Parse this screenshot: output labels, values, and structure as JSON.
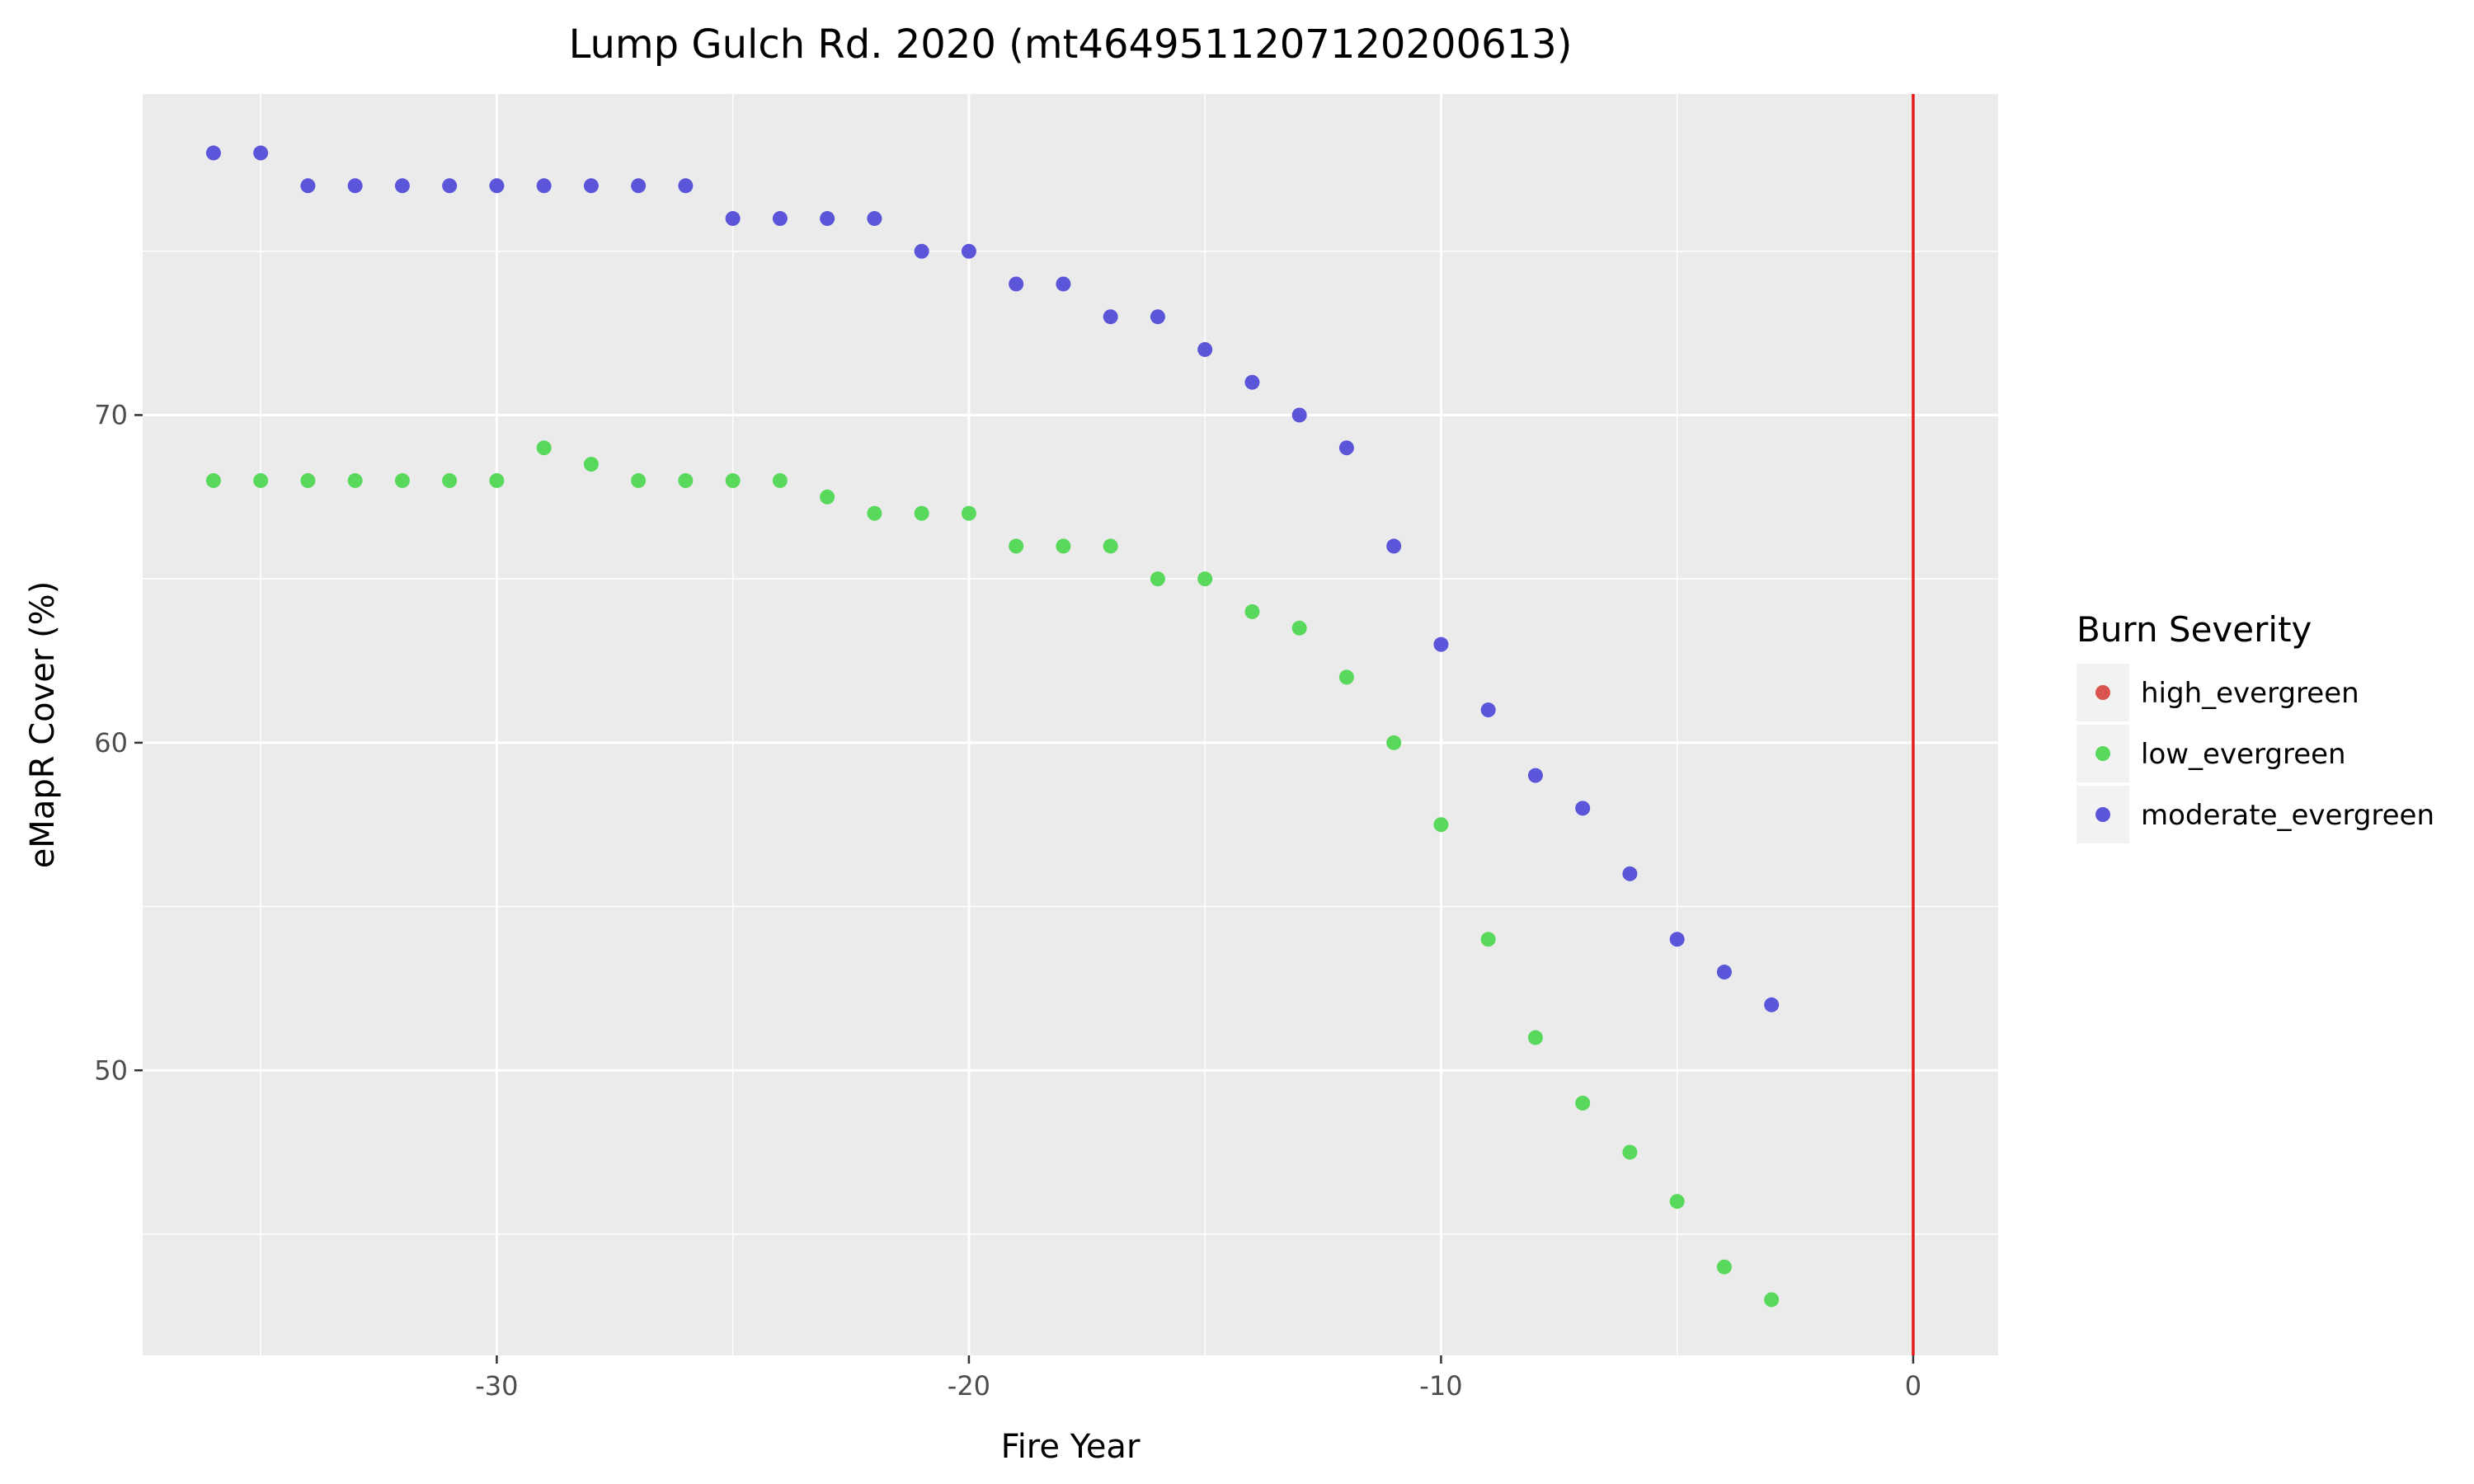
{
  "chart_data": {
    "type": "scatter",
    "title": "Lump Gulch Rd. 2020 (mt4649511207120200613)",
    "xlabel": "Fire Year",
    "ylabel": "eMapR Cover (%)",
    "xlim": [
      -37.5,
      1.8
    ],
    "ylim": [
      41.3,
      79.8
    ],
    "x_ticks": [
      -30,
      -20,
      -10,
      0
    ],
    "y_ticks": [
      50,
      60,
      70
    ],
    "x_minor": [
      -35,
      -25,
      -15,
      -5
    ],
    "y_minor": [
      45,
      55,
      65,
      75
    ],
    "grid": true,
    "vline": {
      "x": 0,
      "color": "#e41a1c"
    },
    "legend": {
      "title": "Burn Severity",
      "position": "right"
    },
    "series": [
      {
        "name": "high_evergreen",
        "color": "#d9534f",
        "x": [],
        "y": []
      },
      {
        "name": "low_evergreen",
        "color": "#59d95c",
        "x": [
          -36,
          -35,
          -34,
          -33,
          -32,
          -31,
          -30,
          -29,
          -28,
          -27,
          -26,
          -25,
          -24,
          -23,
          -22,
          -21,
          -20,
          -19,
          -18,
          -17,
          -16,
          -15,
          -14,
          -13,
          -12,
          -11,
          -10,
          -9,
          -8,
          -7,
          -6,
          -5,
          -4,
          -3
        ],
        "y": [
          68,
          68,
          68,
          68,
          68,
          68,
          68,
          69,
          68.5,
          68,
          68,
          68,
          68,
          67.5,
          67,
          67,
          67,
          66,
          66,
          66,
          65,
          65,
          64,
          63.5,
          62,
          60,
          57.5,
          54,
          51,
          49,
          47.5,
          46,
          44,
          43
        ]
      },
      {
        "name": "moderate_evergreen",
        "color": "#5b55d9",
        "x": [
          -36,
          -35,
          -34,
          -33,
          -32,
          -31,
          -30,
          -29,
          -28,
          -27,
          -26,
          -25,
          -24,
          -23,
          -22,
          -21,
          -20,
          -19,
          -18,
          -17,
          -16,
          -15,
          -14,
          -13,
          -12,
          -11,
          -10,
          -9,
          -8,
          -7,
          -6,
          -5,
          -4,
          -3
        ],
        "y": [
          78,
          78,
          77,
          77,
          77,
          77,
          77,
          77,
          77,
          77,
          77,
          76,
          76,
          76,
          76,
          75,
          75,
          74,
          74,
          73,
          73,
          72,
          71,
          70,
          69,
          66,
          63,
          61,
          59,
          58,
          56,
          54,
          53,
          52
        ]
      }
    ]
  }
}
